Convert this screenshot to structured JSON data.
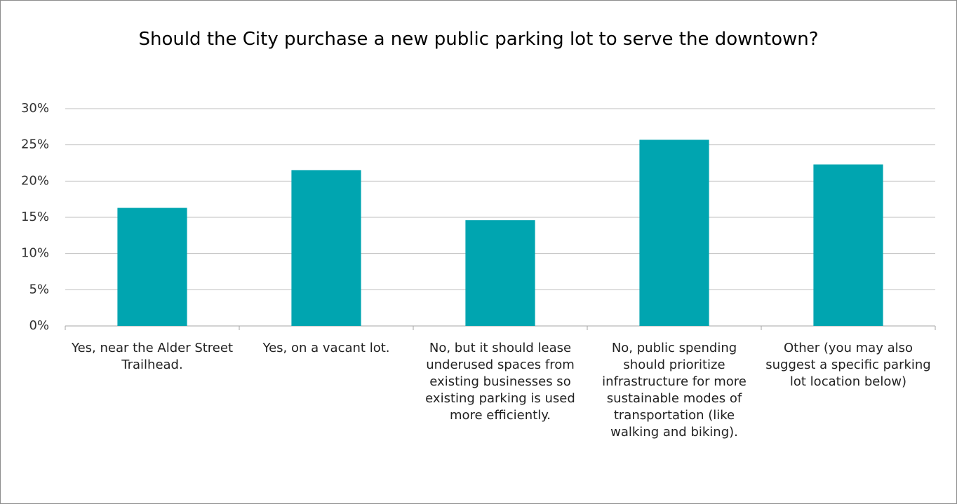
{
  "chart_data": {
    "type": "bar",
    "title": "Should the City purchase a new public parking lot to serve the downtown?",
    "categories": [
      "Yes, near the Alder Street Trailhead.",
      "Yes, on a vacant lot.",
      "No, but it should lease underused spaces from existing businesses so existing parking is used more efficiently.",
      "No, public spending should prioritize infrastructure for more sustainable modes of transportation (like walking and biking).",
      "Other (you may also suggest a specific parking lot location below)"
    ],
    "values": [
      16.3,
      21.5,
      14.6,
      25.7,
      22.3
    ],
    "color": "#00a5b0",
    "ylim": [
      0,
      30
    ],
    "yticks": [
      {
        "value": 0,
        "label": "0%"
      },
      {
        "value": 5,
        "label": "5%"
      },
      {
        "value": 10,
        "label": "10%"
      },
      {
        "value": 15,
        "label": "15%"
      },
      {
        "value": 20,
        "label": "20%"
      },
      {
        "value": 25,
        "label": "25%"
      },
      {
        "value": 30,
        "label": "30%"
      }
    ],
    "grid": true
  }
}
